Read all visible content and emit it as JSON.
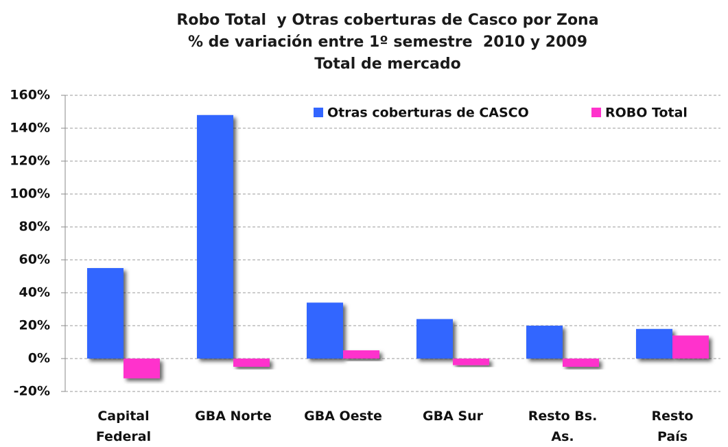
{
  "chart_data": {
    "type": "bar",
    "title": [
      "Robo Total  y Otras coberturas de Casco por Zona",
      "% de variación entre 1º semestre  2010 y 2009",
      "Total de mercado"
    ],
    "categories": [
      "Capital Federal",
      "GBA Norte",
      "GBA Oeste",
      "GBA Sur",
      "Resto Bs. As.",
      "Resto País"
    ],
    "series": [
      {
        "name": "Otras coberturas de CASCO",
        "color": "#3366ff",
        "values": [
          55,
          148,
          34,
          24,
          20,
          18
        ]
      },
      {
        "name": "ROBO Total",
        "color": "#ff33cc",
        "values": [
          -12,
          -5,
          5,
          -4,
          -5,
          14
        ]
      }
    ],
    "ylim": [
      -20,
      160
    ],
    "yticks": [
      {
        "value": -20,
        "label": "-20%"
      },
      {
        "value": 0,
        "label": "0%"
      },
      {
        "value": 20,
        "label": "20%"
      },
      {
        "value": 40,
        "label": "40%"
      },
      {
        "value": 60,
        "label": "60%"
      },
      {
        "value": 80,
        "label": "80%"
      },
      {
        "value": 100,
        "label": "100%"
      },
      {
        "value": 120,
        "label": "120%"
      },
      {
        "value": 140,
        "label": "140%"
      },
      {
        "value": 160,
        "label": "160%"
      }
    ],
    "grid": true,
    "legend": "top-right"
  }
}
